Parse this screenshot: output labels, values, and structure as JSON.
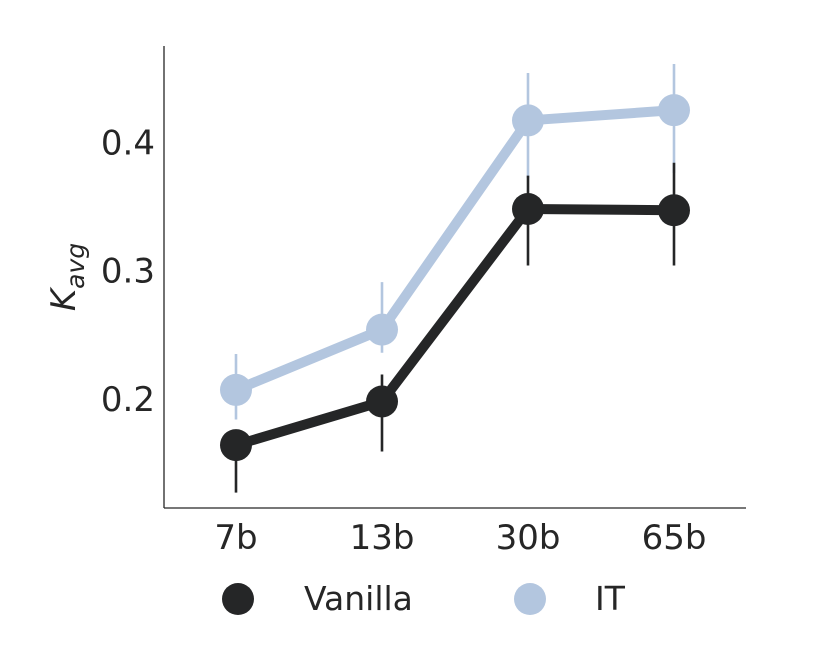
{
  "chart_data": {
    "type": "line",
    "categories": [
      "7b",
      "13b",
      "30b",
      "65b"
    ],
    "ylabel_main": "K",
    "ylabel_sub": "avg",
    "xlabel": "",
    "ylim": [
      0.115,
      0.475
    ],
    "yticks": [
      0.2,
      0.3,
      0.4
    ],
    "ytick_labels": [
      "0.2",
      "0.3",
      "0.4"
    ],
    "grid": false,
    "legend_position": "bottom",
    "series": [
      {
        "name": "Vanilla",
        "color": "#252627",
        "values": [
          0.164,
          0.198,
          0.348,
          0.347
        ],
        "err_low": [
          0.127,
          0.159,
          0.304,
          0.304
        ],
        "err_high": [
          0.174,
          0.219,
          0.374,
          0.384
        ]
      },
      {
        "name": "IT",
        "color": "#b3c6df",
        "values": [
          0.207,
          0.254,
          0.417,
          0.425
        ],
        "err_low": [
          0.184,
          0.236,
          0.372,
          0.376
        ],
        "err_high": [
          0.235,
          0.291,
          0.454,
          0.461
        ]
      }
    ]
  }
}
